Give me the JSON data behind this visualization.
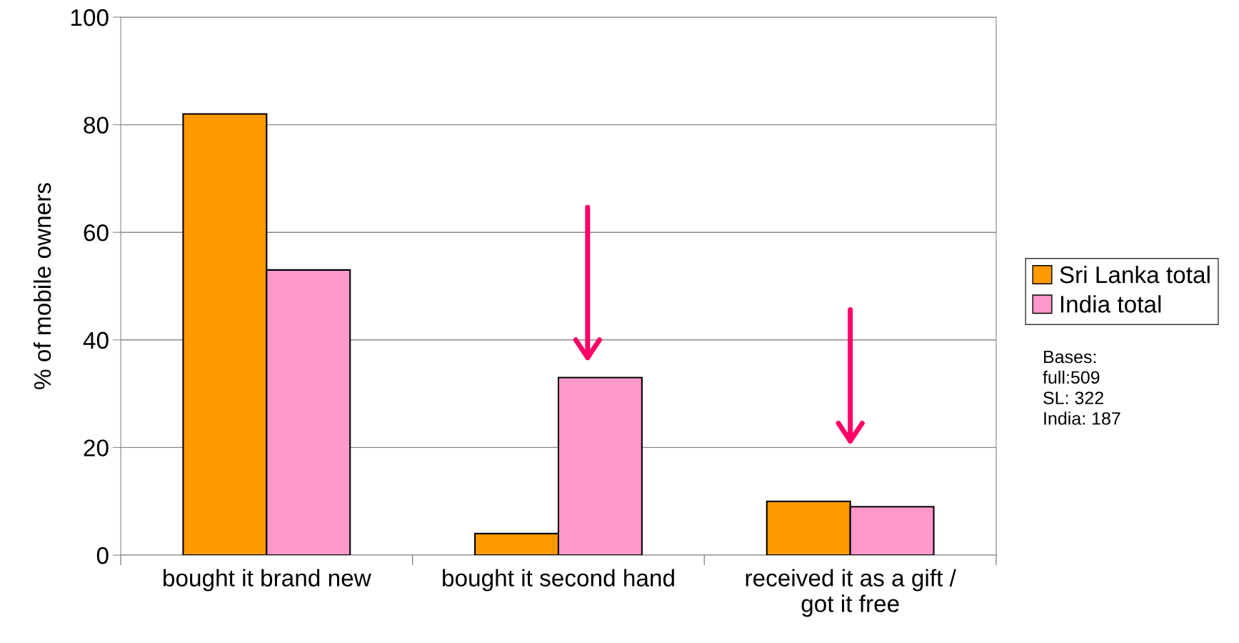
{
  "chart_data": {
    "type": "bar",
    "ylabel": "% of mobile owners",
    "categories": [
      "bought it brand new",
      "bought it second hand",
      "received it as a gift /\ngot it free"
    ],
    "series": [
      {
        "name": "Sri Lanka total",
        "color": "#ff9900",
        "values": [
          82,
          4,
          10
        ]
      },
      {
        "name": "India total",
        "color": "#ff99cc",
        "values": [
          53,
          33,
          9
        ]
      }
    ],
    "ylim": [
      0,
      100
    ],
    "yticks": [
      0,
      20,
      40,
      60,
      80,
      100
    ],
    "grid": "y",
    "legend": "right",
    "annotations": [
      "Bases:\nfull:509\nSL: 322\nIndia: 187"
    ]
  }
}
